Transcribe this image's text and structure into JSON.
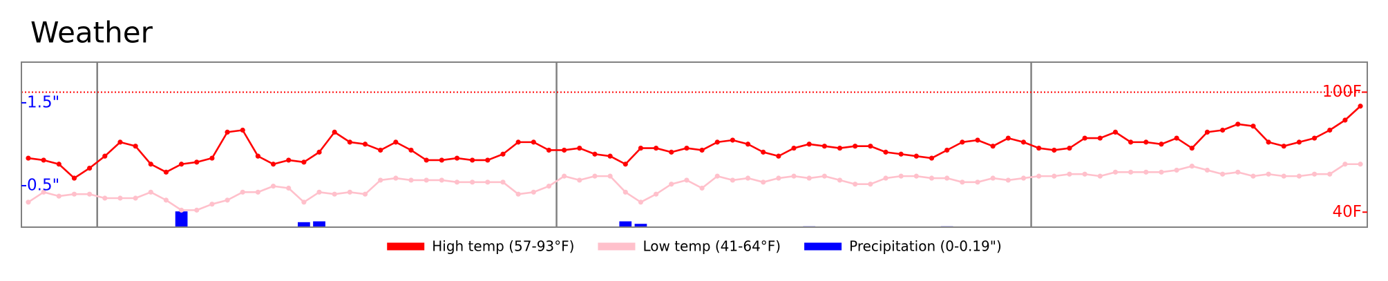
{
  "chart_data": {
    "type": "line",
    "title": "Weather",
    "series": [
      {
        "name": "High temp (57-93°F)",
        "color": "#ff0000",
        "axis": "y2",
        "values": [
          67,
          66,
          64,
          57,
          62,
          68,
          75,
          73,
          64,
          60,
          64,
          65,
          67,
          80,
          81,
          68,
          64,
          66,
          65,
          70,
          80,
          75,
          74,
          71,
          75,
          71,
          66,
          66,
          67,
          66,
          66,
          69,
          75,
          75,
          71,
          71,
          72,
          69,
          68,
          64,
          72,
          72,
          70,
          72,
          71,
          75,
          76,
          74,
          70,
          68,
          72,
          74,
          73,
          72,
          73,
          73,
          70,
          69,
          68,
          67,
          71,
          75,
          76,
          73,
          77,
          75,
          72,
          71,
          72,
          77,
          77,
          80,
          75,
          75,
          74,
          77,
          72,
          80,
          81,
          84,
          83,
          75,
          73,
          75,
          77,
          81,
          86,
          93
        ]
      },
      {
        "name": "Low temp (41-64°F)",
        "color": "#ffc0cb",
        "axis": "y2",
        "values": [
          45,
          50,
          48,
          49,
          49,
          47,
          47,
          47,
          50,
          46,
          41,
          41,
          44,
          46,
          50,
          50,
          53,
          52,
          45,
          50,
          49,
          50,
          49,
          56,
          57,
          56,
          56,
          56,
          55,
          55,
          55,
          55,
          49,
          50,
          53,
          58,
          56,
          58,
          58,
          50,
          45,
          49,
          54,
          56,
          52,
          58,
          56,
          57,
          55,
          57,
          58,
          57,
          58,
          56,
          54,
          54,
          57,
          58,
          58,
          57,
          57,
          55,
          55,
          57,
          56,
          57,
          58,
          58,
          59,
          59,
          58,
          60,
          60,
          60,
          60,
          61,
          63,
          61,
          59,
          60,
          58,
          59,
          58,
          58,
          59,
          59,
          64,
          64
        ]
      },
      {
        "name": "Precipitation (0-0.19\")",
        "color": "#0000ff",
        "type": "bar",
        "values": [
          0,
          0,
          0,
          0,
          0,
          0,
          0,
          0,
          0,
          0,
          0.19,
          0,
          0,
          0,
          0,
          0,
          0,
          0,
          0.06,
          0.07,
          0,
          0,
          0,
          0,
          0,
          0,
          0,
          0,
          0,
          0,
          0,
          0,
          0,
          0,
          0,
          0,
          0,
          0,
          0,
          0.07,
          0.04,
          0,
          0,
          0,
          0,
          0,
          0,
          0,
          0,
          0,
          0,
          0.01,
          0,
          0,
          0,
          0,
          0,
          0,
          0,
          0,
          0.01,
          0,
          0,
          0,
          0,
          0,
          0,
          0,
          0,
          0,
          0,
          0,
          0,
          0,
          0,
          0,
          0,
          0,
          0,
          0,
          0,
          0,
          0,
          0,
          0,
          0,
          0,
          0
        ]
      }
    ],
    "ylim": [
      0,
      1.99
    ],
    "yticks": [
      {
        "value": 0.5,
        "label": "0.5\""
      },
      {
        "value": 1.5,
        "label": "1.5\""
      }
    ],
    "ytick_color": "#0000ff",
    "y2lim": [
      32.5,
      115
    ],
    "y2ticks": [
      {
        "value": 40,
        "label": "40F"
      },
      {
        "value": 100,
        "label": "100F"
      }
    ],
    "y2tick_color": "#ff0000",
    "reference_line": 100,
    "reference_color": "#ff0000",
    "dividers": [
      4.5,
      34.5,
      65.5
    ]
  }
}
